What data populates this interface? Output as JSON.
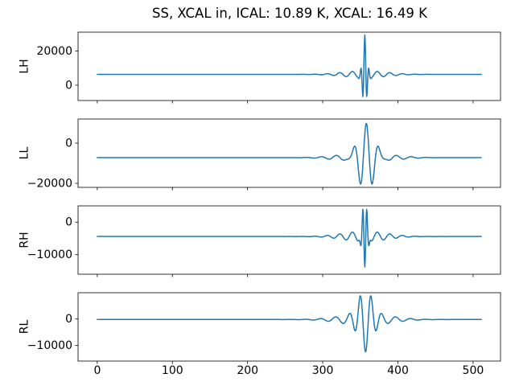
{
  "chart_data": {
    "type": "line",
    "title": "SS, XCAL in, ICAL: 10.89 K, XCAL: 16.49 K",
    "line_color": "#1f77b4",
    "background": "#ffffff",
    "grid": false,
    "legend": null,
    "n_samples": 512,
    "xlim": [
      -25.55,
      536.55
    ],
    "xticks": [
      {
        "value": 0,
        "label": "0"
      },
      {
        "value": 100,
        "label": "100"
      },
      {
        "value": 200,
        "label": "200"
      },
      {
        "value": 300,
        "label": "300"
      },
      {
        "value": 400,
        "label": "400"
      },
      {
        "value": 500,
        "label": "500"
      }
    ],
    "subplots": [
      {
        "name": "LH",
        "ylabel": "LH",
        "ylim": [
          -9000,
          31000
        ],
        "yticks": [
          {
            "value": 0,
            "label": "0"
          },
          {
            "value": 20000,
            "label": "20000"
          }
        ],
        "baseline": 6300,
        "burst_center": 356,
        "peak_max": 27000,
        "peak_min": -7500,
        "wavelet": {
          "amp": 21000,
          "sigma": 3,
          "freq": 0.18,
          "phase": 0
        },
        "ripple": {
          "amp": 2000,
          "sigma": 28,
          "freq": 0.06,
          "phase": 0
        }
      },
      {
        "name": "LL",
        "ylabel": "LL",
        "ylim": [
          -22000,
          12000
        ],
        "yticks": [
          {
            "value": -20000,
            "label": "−20000"
          },
          {
            "value": 0,
            "label": "0"
          }
        ],
        "baseline": -7200,
        "burst_center": 358,
        "peak_max": 9800,
        "peak_min": -19800,
        "wavelet": {
          "amp": 14500,
          "sigma": 11,
          "freq": 0.065,
          "phase": 0
        },
        "ripple": {
          "amp": 2500,
          "sigma": 32,
          "freq": 0.05,
          "phase": 0
        }
      },
      {
        "name": "RH",
        "ylabel": "RH",
        "ylim": [
          -16000,
          5000
        ],
        "yticks": [
          {
            "value": -10000,
            "label": "−10000"
          },
          {
            "value": 0,
            "label": "0"
          }
        ],
        "baseline": -4400,
        "burst_center": 356,
        "peak_max": 3500,
        "peak_min": -13800,
        "wavelet": {
          "amp": -11000,
          "sigma": 3,
          "freq": 0.18,
          "phase": 0
        },
        "ripple": {
          "amp": 1600,
          "sigma": 28,
          "freq": 0.06,
          "phase": 0
        }
      },
      {
        "name": "RL",
        "ylabel": "RL",
        "ylim": [
          -16000,
          10000
        ],
        "yticks": [
          {
            "value": -10000,
            "label": "−10000"
          },
          {
            "value": 0,
            "label": "0"
          }
        ],
        "baseline": -200,
        "burst_center": 357,
        "peak_max": 8300,
        "peak_min": -12500,
        "wavelet": {
          "amp": -14500,
          "sigma": 9,
          "freq": 0.065,
          "phase": 0
        },
        "ripple": {
          "amp": 2200,
          "sigma": 32,
          "freq": 0.05,
          "phase": 0
        }
      }
    ]
  }
}
